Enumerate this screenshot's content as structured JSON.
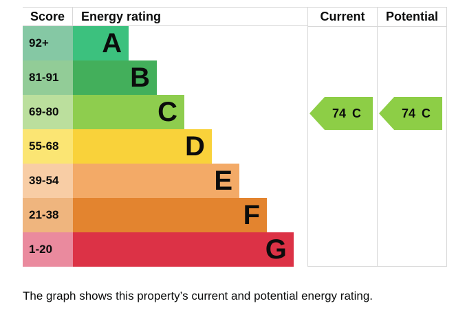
{
  "header": {
    "score": "Score",
    "rating": "Energy rating",
    "current": "Current",
    "potential": "Potential"
  },
  "chart_data": {
    "type": "bar",
    "title": "EPC energy efficiency rating chart",
    "bands": [
      {
        "score": "92+",
        "letter": "A",
        "bar_color": "#3cc17e",
        "score_color": "#85c8a4",
        "width_pct": 23.8
      },
      {
        "score": "81-91",
        "letter": "B",
        "bar_color": "#43af5b",
        "score_color": "#92cc97",
        "width_pct": 35.8
      },
      {
        "score": "69-80",
        "letter": "C",
        "bar_color": "#8ecd4e",
        "score_color": "#bbdf9d",
        "width_pct": 47.5
      },
      {
        "score": "55-68",
        "letter": "D",
        "bar_color": "#f9d23a",
        "score_color": "#fbe573",
        "width_pct": 59.2
      },
      {
        "score": "39-54",
        "letter": "E",
        "bar_color": "#f3aa67",
        "score_color": "#f8cda5",
        "width_pct": 71.0
      },
      {
        "score": "21-38",
        "letter": "F",
        "bar_color": "#e3842f",
        "score_color": "#efb57e",
        "width_pct": 82.7
      },
      {
        "score": "1-20",
        "letter": "G",
        "bar_color": "#dc3246",
        "score_color": "#ea8a9e",
        "width_pct": 94.1
      }
    ],
    "current": {
      "value": "74",
      "letter": "C",
      "color": "#8dce46",
      "band_index": 2
    },
    "potential": {
      "value": "74",
      "letter": "C",
      "color": "#8dce46",
      "band_index": 2
    }
  },
  "caption": "The graph shows this property’s current and potential energy rating.",
  "colors": {
    "border": "#d8d8d8",
    "text": "#0b0c0c",
    "background": "#ffffff"
  }
}
